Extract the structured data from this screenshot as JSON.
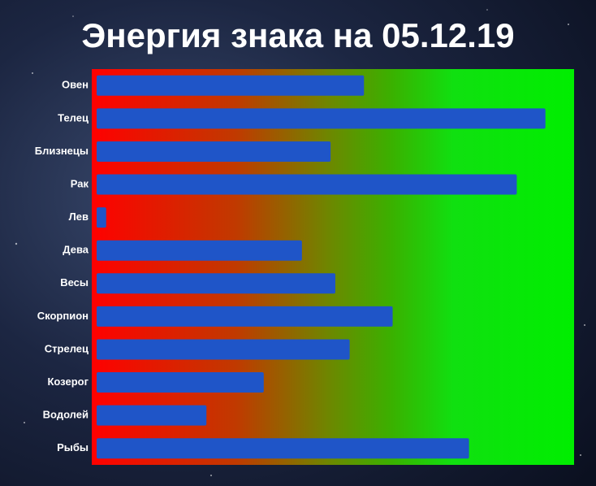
{
  "chart_data": {
    "type": "hbar",
    "title": "Энергия знака на 05.12.19",
    "categories": [
      "Овен",
      "Телец",
      "Близнецы",
      "Рак",
      "Лев",
      "Дева",
      "Весы",
      "Скорпион",
      "Стрелец",
      "Козерог",
      "Водолей",
      "Рыбы"
    ],
    "values": [
      56,
      94,
      49,
      88,
      2,
      43,
      50,
      62,
      53,
      35,
      23,
      78
    ],
    "color": "#1f55c8",
    "xlim": [
      0,
      100
    ]
  }
}
